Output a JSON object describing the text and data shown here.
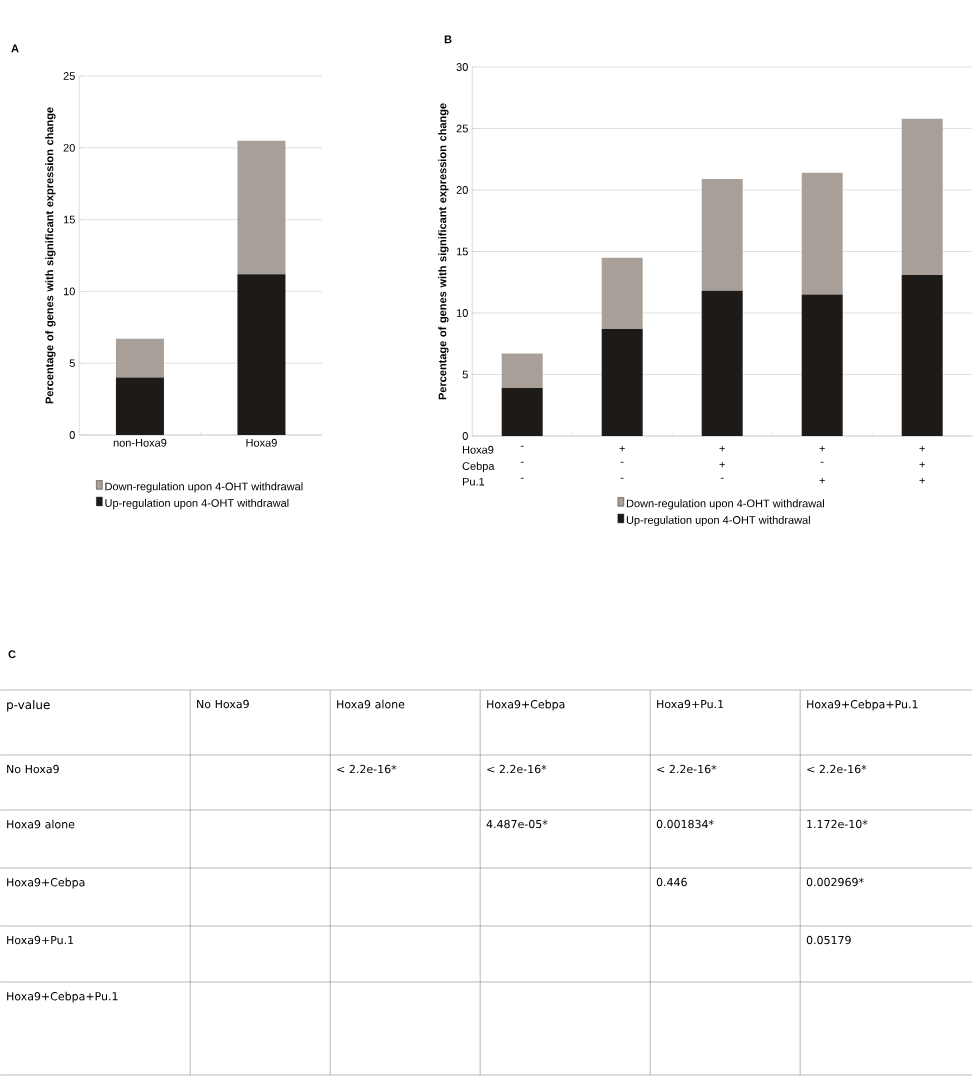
{
  "chart_data": [
    {
      "type": "bar",
      "title": "A",
      "ylabel": "Percentage of genes with significant expression change",
      "categories": [
        "non-Hoxa9",
        "Hoxa9"
      ],
      "stacked": true,
      "ylim": [
        0,
        25
      ],
      "yticks": [
        0,
        5,
        10,
        15,
        20,
        25
      ],
      "grid": "y",
      "legend": "bottom",
      "series": [
        {
          "name": "Up-regulation upon 4-OHT withdrawal",
          "color": "#1e1a17",
          "values": [
            4.0,
            11.2
          ]
        },
        {
          "name": "Down-regulation upon 4-OHT withdrawal",
          "color": "#a89f98",
          "values": [
            2.7,
            9.3
          ]
        }
      ]
    },
    {
      "type": "bar",
      "title": "B",
      "ylabel": "Percentage of genes with significant expression change",
      "categories": [
        "-",
        "+",
        "+",
        "+",
        "+"
      ],
      "annotations": [
        "Hoxa9",
        "Cebpa",
        "Pu.1",
        "-",
        "-",
        "+",
        "-",
        "+",
        "-",
        "-",
        "-",
        "+",
        "+"
      ],
      "stacked": true,
      "ylim": [
        0,
        30
      ],
      "yticks": [
        0,
        5,
        10,
        15,
        20,
        25,
        30
      ],
      "grid": "y",
      "legend": "bottom",
      "series": [
        {
          "name": "Up-regulation upon 4-OHT withdrawal",
          "color": "#1e1a17",
          "values": [
            3.9,
            8.7,
            11.8,
            11.5,
            13.1
          ]
        },
        {
          "name": "Down-regulation upon 4-OHT withdrawal",
          "color": "#a89f98",
          "values": [
            2.8,
            5.8,
            9.1,
            9.9,
            12.7
          ]
        }
      ]
    },
    {
      "type": "other",
      "title": "C",
      "annotations": [
        "p-value"
      ],
      "categories": [
        "No Hoxa9",
        "Hoxa9 alone",
        "Hoxa9+Cebpa",
        "Hoxa9+Pu.1",
        "Hoxa9+Cebpa+Pu.1"
      ],
      "y_categories": [
        "No Hoxa9",
        "Hoxa9 alone",
        "Hoxa9+Cebpa",
        "Hoxa9+Pu.1",
        "Hoxa9+Cebpa+Pu.1"
      ],
      "cell_labels": [
        [
          null,
          "< 2.2e-16*",
          "< 2.2e-16*",
          "< 2.2e-16*",
          "< 2.2e-16*"
        ],
        [
          null,
          null,
          "4.487e-05*",
          "0.001834*",
          "1.172e-10*"
        ],
        [
          null,
          null,
          null,
          "0.446",
          "0.002969*"
        ],
        [
          null,
          null,
          null,
          null,
          "0.05179"
        ],
        [
          null,
          null,
          null,
          null,
          null
        ]
      ]
    }
  ]
}
